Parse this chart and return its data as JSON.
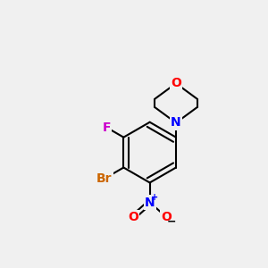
{
  "bg_color": "#f0f0f0",
  "bond_color": "#000000",
  "line_width": 1.5,
  "atom_colors": {
    "O": "#ff0000",
    "N": "#0000ff",
    "F": "#cc00cc",
    "Br": "#cc6600"
  },
  "font_size": 10,
  "fig_size": [
    3.0,
    3.0
  ],
  "dpi": 100
}
